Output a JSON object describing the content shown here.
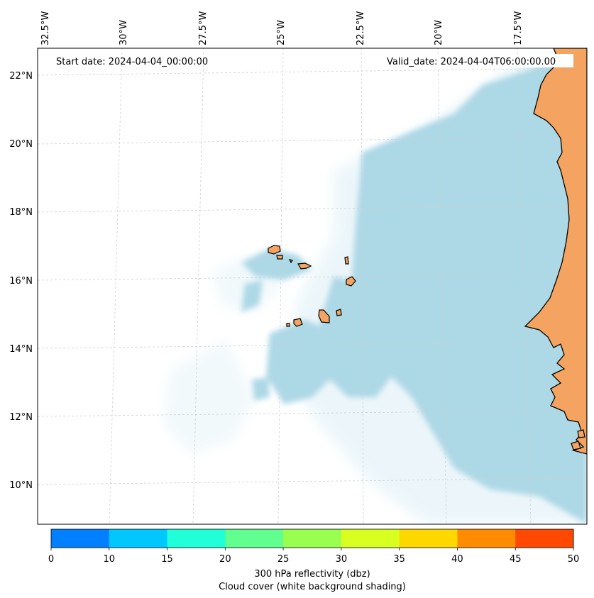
{
  "map": {
    "start_label": "Start date: 2024-04-04_00:00:00",
    "valid_label": "Valid_date: 2024-04-04T06:00:00.00",
    "lon_labels": [
      "32.5°W",
      "30°W",
      "27.5°W",
      "25°W",
      "22.5°W",
      "20°W",
      "17.5°W"
    ],
    "lat_labels": [
      "22°N",
      "20°N",
      "18°N",
      "16°N",
      "14°N",
      "12°N",
      "10°N"
    ],
    "colors": {
      "land": "#f4a460",
      "cloud": "#add8e6",
      "coast": "#000000",
      "grid": "#c8c8c8"
    }
  },
  "colorbar": {
    "ticks": [
      "0",
      "10",
      "15",
      "20",
      "25",
      "30",
      "35",
      "40",
      "45",
      "50"
    ],
    "colors": [
      "#0080ff",
      "#00c8ff",
      "#20ffd8",
      "#60ff90",
      "#98ff50",
      "#d8ff20",
      "#ffd800",
      "#ff8c00",
      "#ff4800"
    ],
    "label_line1": "300 hPa reflectivity (dbz)",
    "label_line2": "Cloud cover (white background shading)"
  }
}
